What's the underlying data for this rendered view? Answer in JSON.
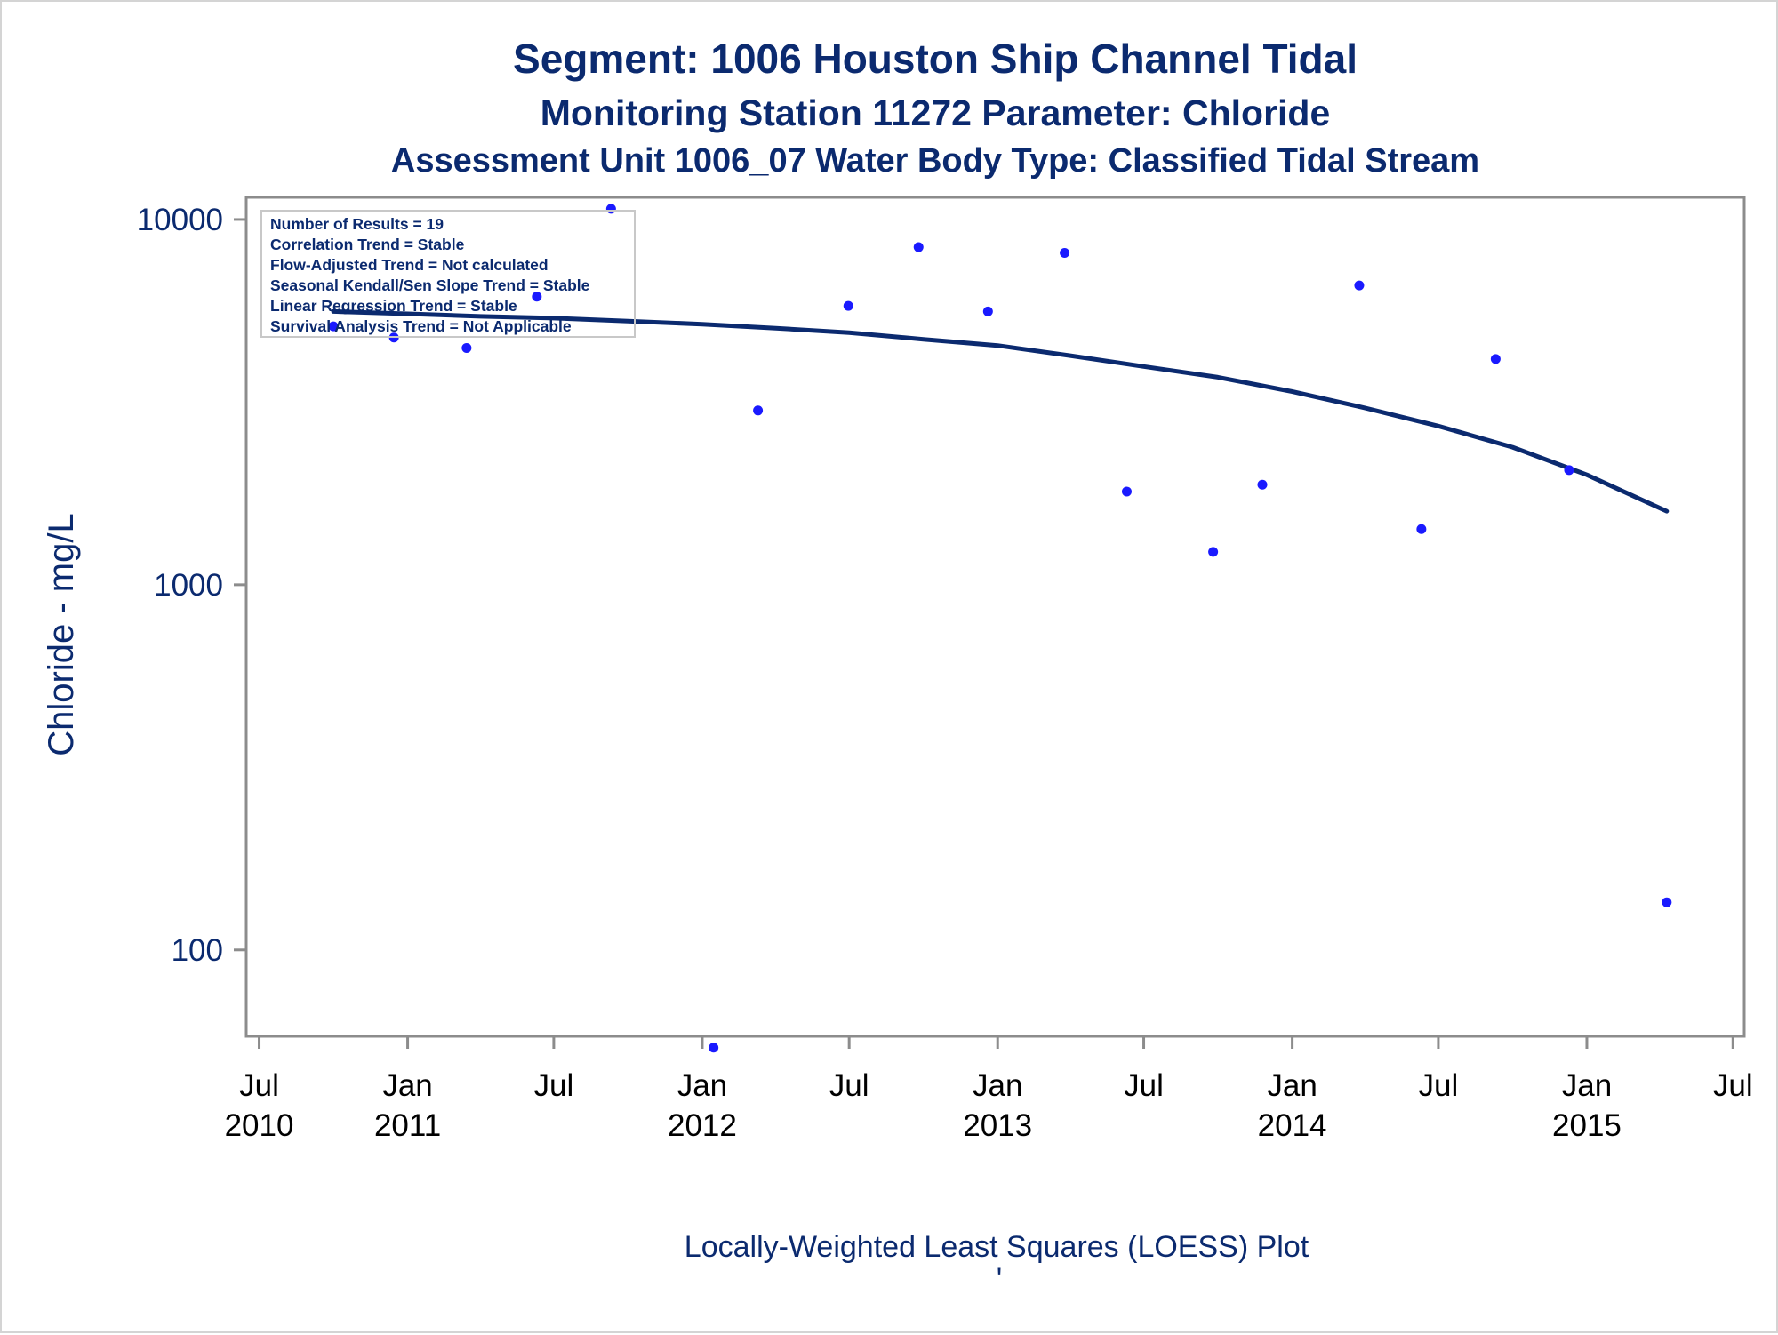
{
  "titles": {
    "line1": "Segment: 1006  Houston Ship Channel Tidal",
    "line2": "Monitoring Station 11272 Parameter: Chloride",
    "line3": "Assessment Unit 1006_07   Water Body Type: Classified Tidal Stream"
  },
  "footnote": "Locally-Weighted Least Squares (LOESS) Plot",
  "footnote_mark": "'",
  "inset": [
    "Number of Results = 19",
    "Correlation Trend = Stable",
    "Flow-Adjusted Trend = Not calculated",
    "Seasonal Kendall/Sen Slope Trend = Stable",
    "Linear Regression Trend = Stable",
    "Survival Analysis Trend = Not Applicable"
  ],
  "colors": {
    "points": "#1a1aff",
    "loess": "#0b2a6f",
    "text": "#0b2a6f",
    "axis": "#8c8c8c"
  },
  "chart_data": {
    "type": "scatter",
    "title": "Segment: 1006  Houston Ship Channel Tidal",
    "ylabel": "Chloride - mg/L",
    "xlabel": "",
    "y_scale": "log",
    "ylim": [
      58,
      11500
    ],
    "xlim": [
      "2010-06-15",
      "2015-07-15"
    ],
    "grid": false,
    "y_ticks": [
      {
        "value": 100,
        "label": "100"
      },
      {
        "value": 1000,
        "label": "1000"
      },
      {
        "value": 10000,
        "label": "10000"
      }
    ],
    "x_ticks": [
      {
        "date": "2010-07-01",
        "label": [
          "Jul",
          "2010"
        ]
      },
      {
        "date": "2011-01-01",
        "label": [
          "Jan",
          "2011"
        ]
      },
      {
        "date": "2011-07-01",
        "label": [
          "Jul",
          ""
        ]
      },
      {
        "date": "2012-01-01",
        "label": [
          "Jan",
          "2012"
        ]
      },
      {
        "date": "2012-07-01",
        "label": [
          "Jul",
          ""
        ]
      },
      {
        "date": "2013-01-01",
        "label": [
          "Jan",
          "2013"
        ]
      },
      {
        "date": "2013-07-01",
        "label": [
          "Jul",
          ""
        ]
      },
      {
        "date": "2014-01-01",
        "label": [
          "Jan",
          "2014"
        ]
      },
      {
        "date": "2014-07-01",
        "label": [
          "Jul",
          ""
        ]
      },
      {
        "date": "2015-01-01",
        "label": [
          "Jan",
          "2015"
        ]
      },
      {
        "date": "2015-07-01",
        "label": [
          "Jul",
          ""
        ]
      }
    ],
    "series": [
      {
        "kind": "points",
        "points": [
          {
            "x": "2010-10-01",
            "y": 5100
          },
          {
            "x": "2010-12-15",
            "y": 4750
          },
          {
            "x": "2011-03-15",
            "y": 4450
          },
          {
            "x": "2011-06-10",
            "y": 6150
          },
          {
            "x": "2011-09-10",
            "y": 10700
          },
          {
            "x": "2012-01-15",
            "y": 54
          },
          {
            "x": "2012-03-10",
            "y": 3000
          },
          {
            "x": "2012-06-30",
            "y": 5800
          },
          {
            "x": "2012-09-25",
            "y": 8400
          },
          {
            "x": "2012-12-20",
            "y": 5600
          },
          {
            "x": "2013-03-25",
            "y": 8100
          },
          {
            "x": "2013-06-10",
            "y": 1800
          },
          {
            "x": "2013-09-25",
            "y": 1230
          },
          {
            "x": "2013-11-25",
            "y": 1880
          },
          {
            "x": "2014-03-25",
            "y": 6600
          },
          {
            "x": "2014-06-10",
            "y": 1420
          },
          {
            "x": "2014-09-10",
            "y": 4150
          },
          {
            "x": "2014-12-10",
            "y": 2060
          },
          {
            "x": "2015-04-10",
            "y": 135
          }
        ]
      },
      {
        "kind": "loess",
        "points": [
          {
            "x": "2010-10-01",
            "y": 5600
          },
          {
            "x": "2011-01-01",
            "y": 5520
          },
          {
            "x": "2011-04-01",
            "y": 5430
          },
          {
            "x": "2011-07-01",
            "y": 5370
          },
          {
            "x": "2011-10-01",
            "y": 5270
          },
          {
            "x": "2012-01-01",
            "y": 5170
          },
          {
            "x": "2012-04-01",
            "y": 5040
          },
          {
            "x": "2012-07-01",
            "y": 4900
          },
          {
            "x": "2012-10-01",
            "y": 4700
          },
          {
            "x": "2013-01-01",
            "y": 4520
          },
          {
            "x": "2013-04-01",
            "y": 4240
          },
          {
            "x": "2013-07-01",
            "y": 3960
          },
          {
            "x": "2013-10-01",
            "y": 3700
          },
          {
            "x": "2014-01-01",
            "y": 3380
          },
          {
            "x": "2014-04-01",
            "y": 3050
          },
          {
            "x": "2014-07-01",
            "y": 2720
          },
          {
            "x": "2014-10-01",
            "y": 2380
          },
          {
            "x": "2015-01-01",
            "y": 2000
          },
          {
            "x": "2015-04-10",
            "y": 1590
          }
        ]
      }
    ]
  }
}
